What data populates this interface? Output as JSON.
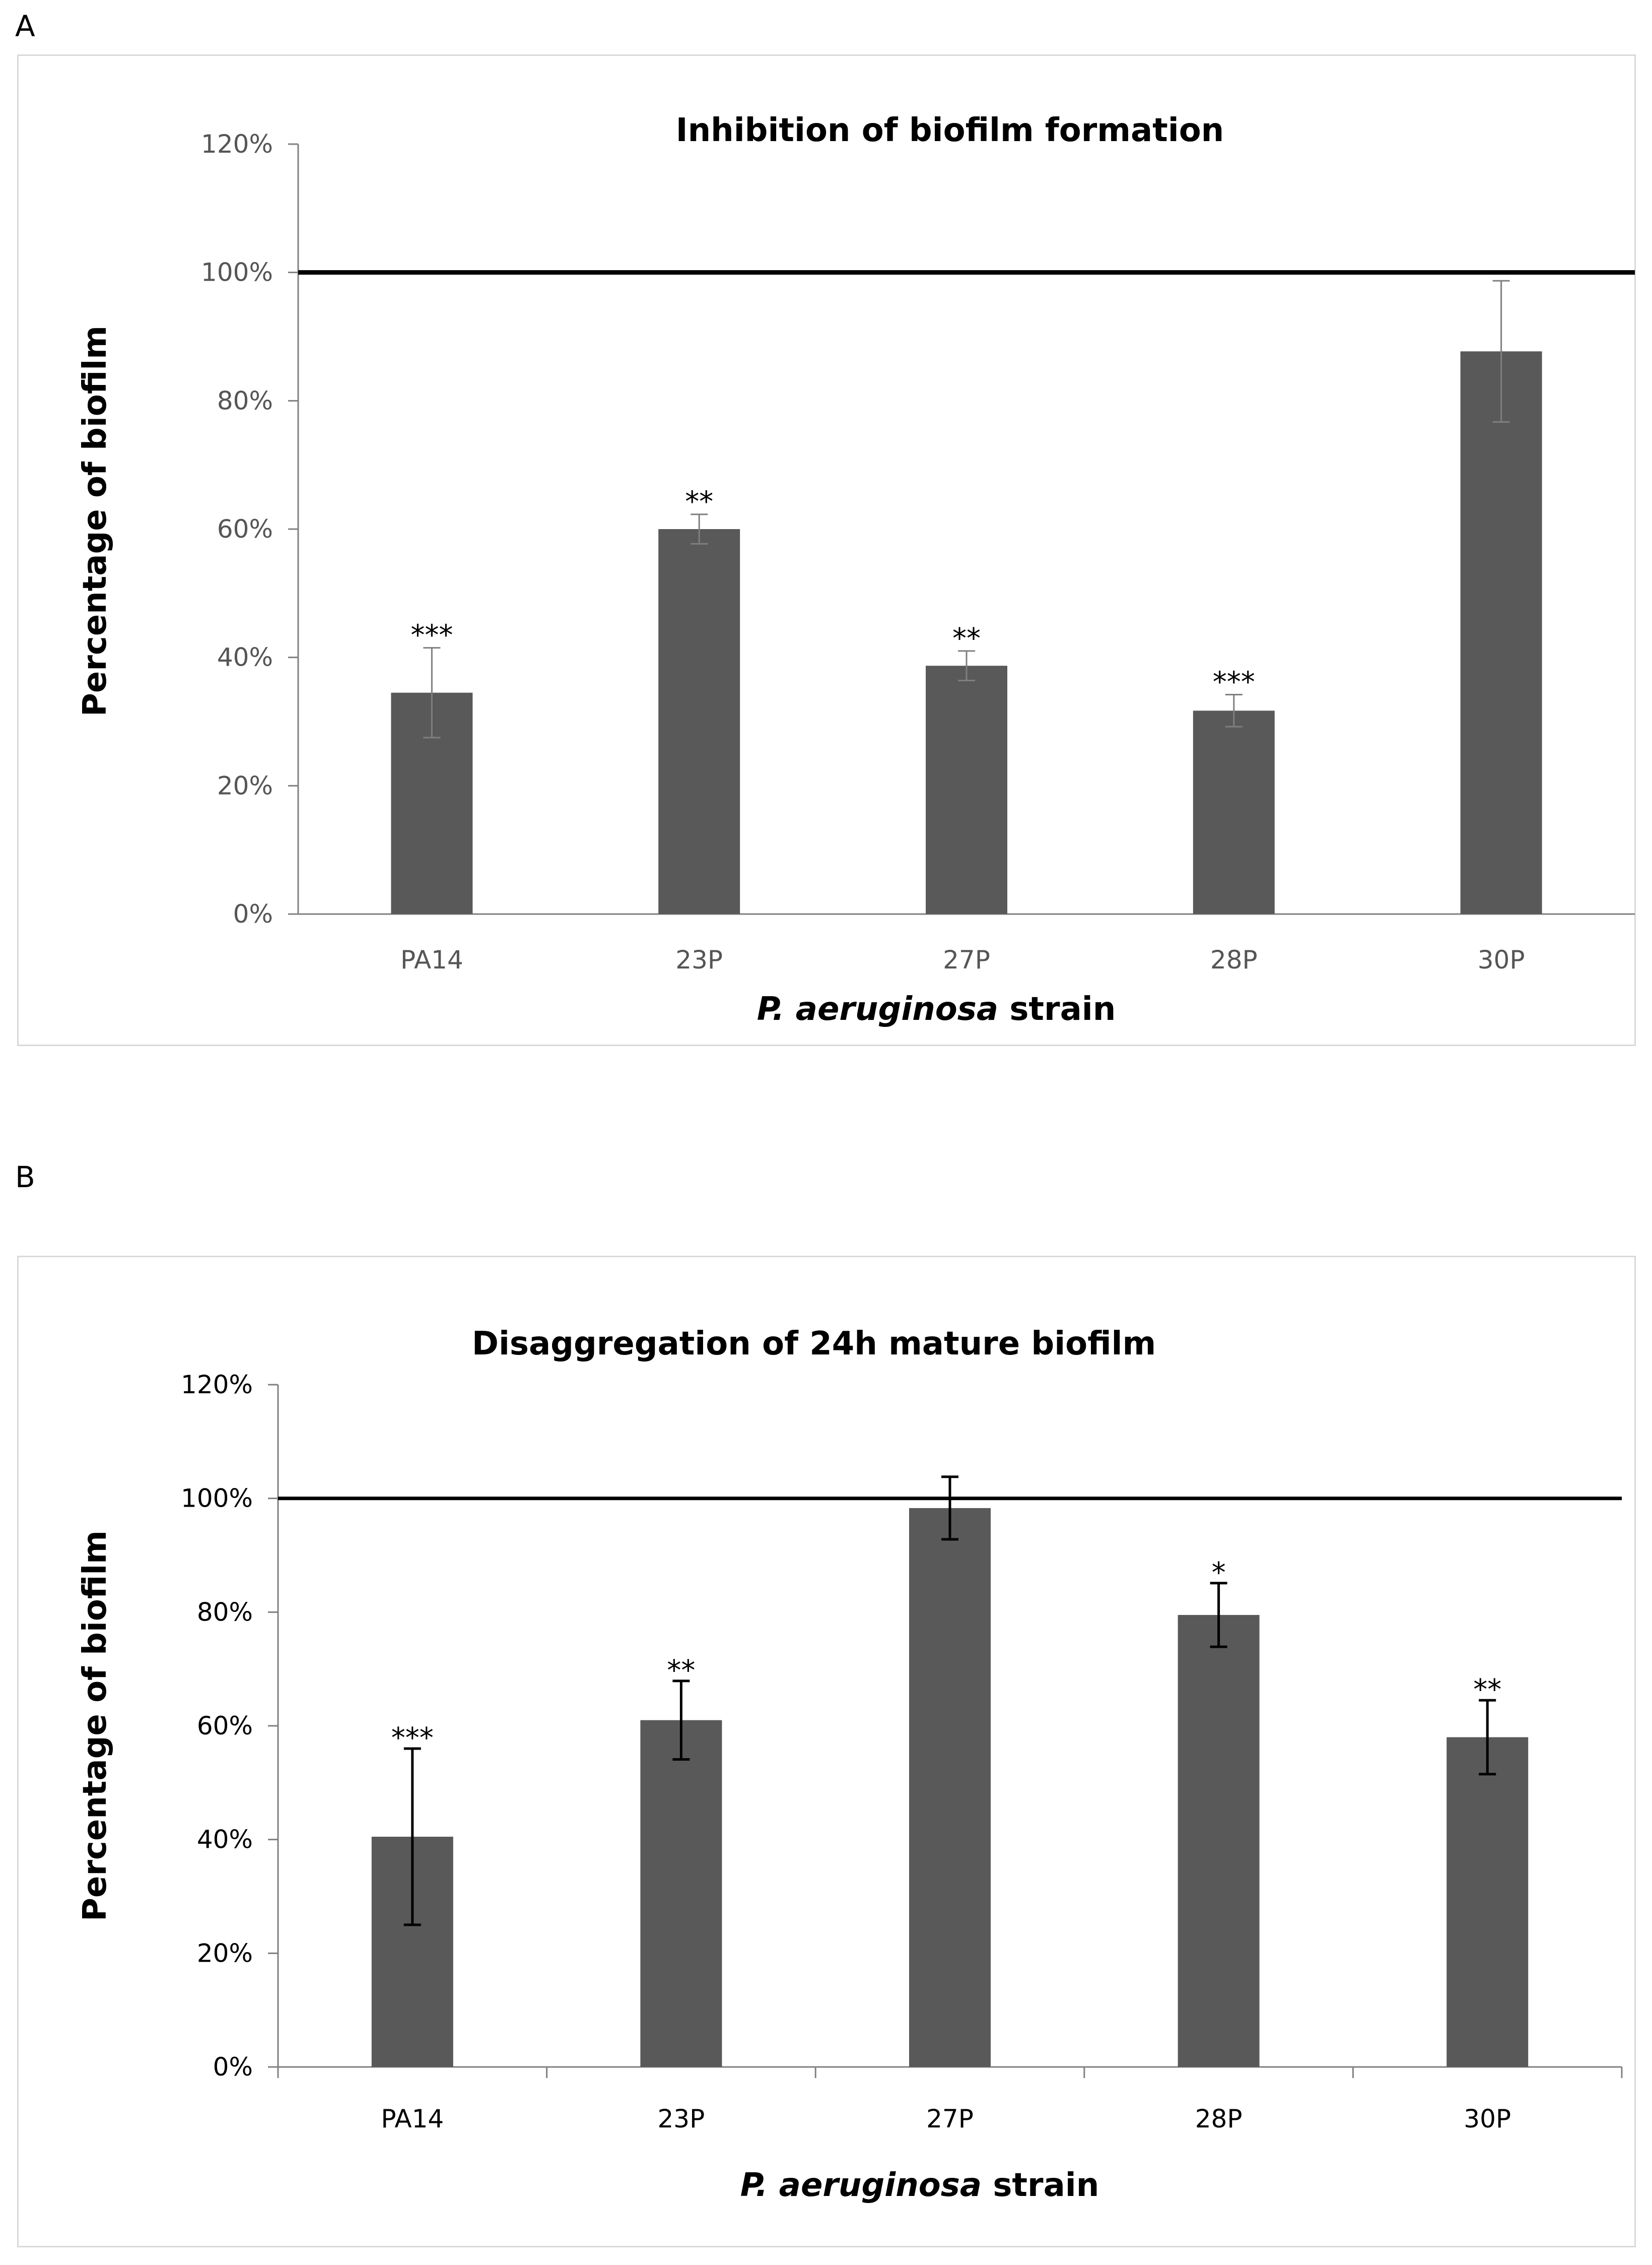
{
  "panels": {
    "a_letter": "A",
    "b_letter": "B"
  },
  "colors": {
    "bar": "#595959",
    "axis": "#808080",
    "reference_line": "#000000"
  },
  "chart_data": [
    {
      "type": "bar",
      "title": "Inhibition of biofilm formation",
      "xlabel_italic": "P. aeruginosa",
      "xlabel_rest": " strain",
      "ylabel": "Percentage of biofilm",
      "ylim": [
        0,
        120
      ],
      "yticks": [
        0,
        20,
        40,
        60,
        80,
        100,
        120
      ],
      "ytick_labels": [
        "0%",
        "20%",
        "40%",
        "60%",
        "80%",
        "100%",
        "120%"
      ],
      "categories": [
        "PA14",
        "23P",
        "27P",
        "28P",
        "30P"
      ],
      "values": [
        34.5,
        60,
        38.7,
        31.7,
        87.7
      ],
      "errors": [
        7,
        2.3,
        2.3,
        2.5,
        11
      ],
      "significance": [
        "***",
        "**",
        "**",
        "***",
        ""
      ],
      "reference_line": 100
    },
    {
      "type": "bar",
      "title": "Disaggregation of 24h mature biofilm",
      "xlabel_italic": "P. aeruginosa",
      "xlabel_rest": " strain",
      "ylabel": "Percentage of biofilm",
      "ylim": [
        0,
        120
      ],
      "yticks": [
        0,
        20,
        40,
        60,
        80,
        100,
        120
      ],
      "ytick_labels": [
        "0%",
        "20%",
        "40%",
        "60%",
        "80%",
        "100%",
        "120%"
      ],
      "categories": [
        "PA14",
        "23P",
        "27P",
        "28P",
        "30P"
      ],
      "values": [
        40.5,
        61,
        98.3,
        79.5,
        58
      ],
      "errors": [
        15.5,
        6.9,
        5.5,
        5.6,
        6.5
      ],
      "significance": [
        "***",
        "**",
        "",
        "*",
        "**"
      ],
      "reference_line": 100
    }
  ]
}
